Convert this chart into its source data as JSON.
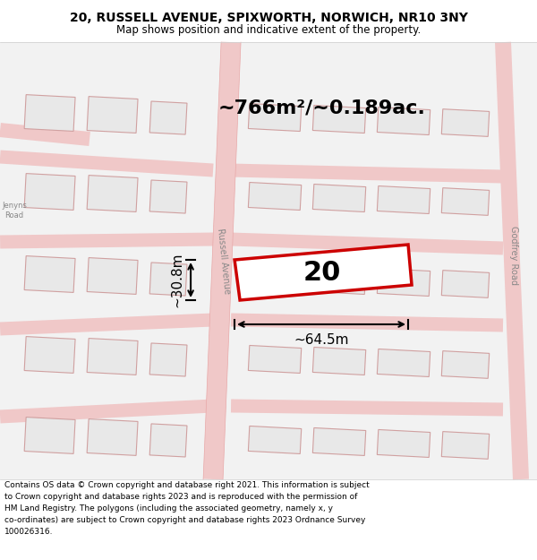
{
  "title_line1": "20, RUSSELL AVENUE, SPIXWORTH, NORWICH, NR10 3NY",
  "title_line2": "Map shows position and indicative extent of the property.",
  "footer_lines": [
    "Contains OS data © Crown copyright and database right 2021. This information is subject",
    "to Crown copyright and database rights 2023 and is reproduced with the permission of",
    "HM Land Registry. The polygons (including the associated geometry, namely x, y",
    "co-ordinates) are subject to Crown copyright and database rights 2023 Ordnance Survey",
    "100026316."
  ],
  "area_text": "~766m²/~0.189ac.",
  "width_text": "~64.5m",
  "height_text": "~30.8m",
  "plot_number": "20",
  "map_bg": "#f2f2f2",
  "road_color": "#f0c8c8",
  "road_edge_color": "#e8a8a8",
  "building_fill": "#e8e8e8",
  "building_outline": "#d0a0a0",
  "plot_outline": "#cc0000",
  "plot_fill": "#ffffff",
  "dimension_color": "#000000",
  "road_label": "Russell Avenue",
  "road_label2": "Godfrey Road",
  "road_label3": "Jenyns\nRoad",
  "title_fontsize": 10,
  "subtitle_fontsize": 8.5,
  "footer_fontsize": 6.5,
  "area_fontsize": 16,
  "dim_fontsize": 11,
  "plot_num_fontsize": 22,
  "road_label_fontsize": 7
}
